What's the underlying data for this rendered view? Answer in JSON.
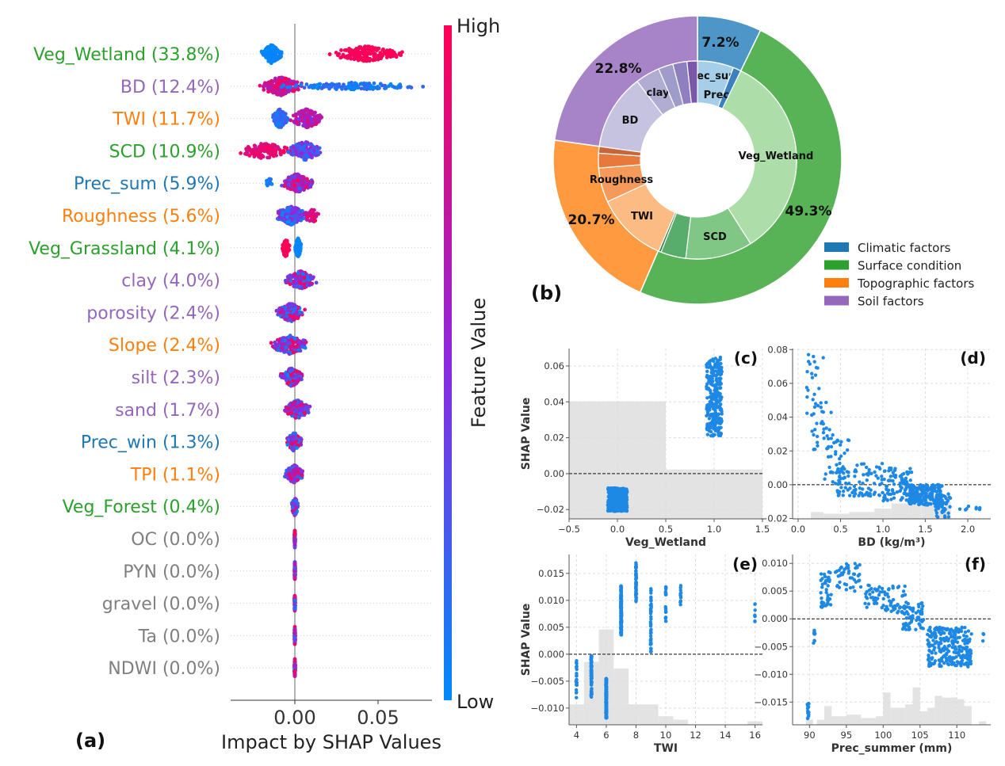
{
  "colors": {
    "climatic": "#1f77b4",
    "surface": "#2ca02c",
    "topographic": "#ff7f0e",
    "soil": "#9467bd",
    "zero": "#7f7f7f",
    "low": "#008afb",
    "high": "#ff0052",
    "point": "#1e88e5"
  },
  "chart_data": [
    {
      "panel": "(a)",
      "type": "scatter",
      "subtype": "beeswarm",
      "xlabel": "Impact by SHAP Values",
      "xticks": [
        0.0,
        0.05
      ],
      "xtick_labels": [
        "0.00",
        "0.05"
      ],
      "xlim": [
        -0.039,
        0.082
      ],
      "colorbar": {
        "label": "Feature Value",
        "high": "High",
        "low": "Low"
      },
      "features": [
        {
          "label": "Veg_Wetland (33.8%)",
          "group": "surface",
          "clusters": [
            {
              "range": [
                -0.02,
                -0.008
              ],
              "fv": [
                0,
                0.05
              ],
              "n": 160
            },
            {
              "range": [
                0.021,
                0.065
              ],
              "fv": [
                0.95,
                1
              ],
              "n": 180
            }
          ]
        },
        {
          "label": "BD (12.4%)",
          "group": "soil",
          "clusters": [
            {
              "range": [
                -0.021,
                0.004
              ],
              "fv": [
                0.6,
                1
              ],
              "n": 220
            },
            {
              "range": [
                -0.008,
                0.077
              ],
              "fv": [
                0,
                0.25
              ],
              "n": 120
            }
          ]
        },
        {
          "label": "TWI (11.7%)",
          "group": "topographic",
          "clusters": [
            {
              "range": [
                -0.014,
                -0.004
              ],
              "fv": [
                0.05,
                0.3
              ],
              "n": 140
            },
            {
              "range": [
                -0.003,
                0.017
              ],
              "fv": [
                0.4,
                0.9
              ],
              "n": 140
            }
          ]
        },
        {
          "label": "SCD (10.9%)",
          "group": "surface",
          "clusters": [
            {
              "range": [
                -0.034,
                -0.002
              ],
              "fv": [
                0.75,
                1
              ],
              "n": 140
            },
            {
              "range": [
                -0.004,
                0.016
              ],
              "fv": [
                0.1,
                0.6
              ],
              "n": 160
            }
          ]
        },
        {
          "label": "Prec_sum (5.9%)",
          "group": "climatic",
          "clusters": [
            {
              "range": [
                -0.018,
                -0.012
              ],
              "fv": [
                0,
                0.15
              ],
              "n": 15
            },
            {
              "range": [
                -0.008,
                0.011
              ],
              "fv": [
                0.2,
                1
              ],
              "n": 220
            }
          ]
        },
        {
          "label": "Roughness (5.6%)",
          "group": "topographic",
          "clusters": [
            {
              "range": [
                -0.012,
                0.008
              ],
              "fv": [
                0,
                0.6
              ],
              "n": 200
            },
            {
              "range": [
                0.005,
                0.015
              ],
              "fv": [
                0.7,
                1
              ],
              "n": 40
            }
          ]
        },
        {
          "label": "Veg_Grassland (4.1%)",
          "group": "surface",
          "clusters": [
            {
              "range": [
                -0.008,
                -0.003
              ],
              "fv": [
                0.95,
                1
              ],
              "n": 70
            },
            {
              "range": [
                0.0,
                0.004
              ],
              "fv": [
                0,
                0.05
              ],
              "n": 140
            }
          ]
        },
        {
          "label": "clay (4.0%)",
          "group": "soil",
          "clusters": [
            {
              "range": [
                -0.006,
                0.013
              ],
              "fv": [
                0,
                1
              ],
              "n": 200
            }
          ]
        },
        {
          "label": "porosity (2.4%)",
          "group": "soil",
          "clusters": [
            {
              "range": [
                -0.011,
                0.006
              ],
              "fv": [
                0,
                1
              ],
              "n": 180
            }
          ]
        },
        {
          "label": "Slope (2.4%)",
          "group": "topographic",
          "clusters": [
            {
              "range": [
                -0.015,
                0.009
              ],
              "fv": [
                0,
                1
              ],
              "n": 170
            }
          ]
        },
        {
          "label": "silt (2.3%)",
          "group": "soil",
          "clusters": [
            {
              "range": [
                -0.009,
                0.005
              ],
              "fv": [
                0,
                1
              ],
              "n": 170
            }
          ]
        },
        {
          "label": "sand (1.7%)",
          "group": "soil",
          "clusters": [
            {
              "range": [
                -0.006,
                0.009
              ],
              "fv": [
                0,
                1
              ],
              "n": 170
            }
          ]
        },
        {
          "label": "Prec_win (1.3%)",
          "group": "climatic",
          "clusters": [
            {
              "range": [
                -0.005,
                0.004
              ],
              "fv": [
                0,
                1
              ],
              "n": 170
            }
          ]
        },
        {
          "label": "TPI (1.1%)",
          "group": "topographic",
          "clusters": [
            {
              "range": [
                -0.006,
                0.005
              ],
              "fv": [
                0,
                1
              ],
              "n": 170
            }
          ]
        },
        {
          "label": "Veg_Forest (0.4%)",
          "group": "surface",
          "clusters": [
            {
              "range": [
                -0.002,
                0.002
              ],
              "fv": [
                0,
                1
              ],
              "n": 120
            }
          ]
        },
        {
          "label": "OC (0.0%)",
          "group": "zero",
          "clusters": [
            {
              "range": [
                -0.0003,
                0.0003
              ],
              "fv": [
                0,
                1
              ],
              "n": 80
            }
          ]
        },
        {
          "label": "PYN (0.0%)",
          "group": "zero",
          "clusters": [
            {
              "range": [
                -0.0003,
                0.0003
              ],
              "fv": [
                0,
                1
              ],
              "n": 80
            }
          ]
        },
        {
          "label": "gravel (0.0%)",
          "group": "zero",
          "clusters": [
            {
              "range": [
                -0.0003,
                0.0003
              ],
              "fv": [
                0,
                1
              ],
              "n": 80
            }
          ]
        },
        {
          "label": "Ta (0.0%)",
          "group": "zero",
          "clusters": [
            {
              "range": [
                -0.0003,
                0.0003
              ],
              "fv": [
                0,
                1
              ],
              "n": 80
            }
          ]
        },
        {
          "label": "NDWI (0.0%)",
          "group": "zero",
          "clusters": [
            {
              "range": [
                -0.0003,
                0.0003
              ],
              "fv": [
                0,
                1
              ],
              "n": 80
            }
          ]
        }
      ]
    },
    {
      "panel": "(b)",
      "type": "pie",
      "subtype": "nested-donut",
      "outer": [
        {
          "name": "Climatic factors",
          "group": "climatic",
          "value": 7.2,
          "label": "7.2%"
        },
        {
          "name": "Surface condition",
          "group": "surface",
          "value": 49.3,
          "label": "49.3%"
        },
        {
          "name": "Topographic factors",
          "group": "topographic",
          "value": 20.7,
          "label": "20.7%"
        },
        {
          "name": "Soil factors",
          "group": "soil",
          "value": 22.8,
          "label": "22.8%"
        }
      ],
      "inner": [
        {
          "name": "Prec_sum",
          "value": 5.9,
          "color": "#a6cee8",
          "show": true
        },
        {
          "name": "Prec_win",
          "value": 1.3,
          "color": "#3a7fbf",
          "show": true
        },
        {
          "name": "Veg_Wetland",
          "value": 33.8,
          "color": "#addda8",
          "show": true
        },
        {
          "name": "SCD",
          "value": 10.9,
          "color": "#80c785",
          "show": true
        },
        {
          "name": "Veg_Grassland",
          "value": 4.1,
          "color": "#58ad6c",
          "show": false
        },
        {
          "name": "Veg_Forest",
          "value": 0.4,
          "color": "#2f7e3f",
          "show": false
        },
        {
          "name": "TWI",
          "value": 11.7,
          "color": "#fdbb84",
          "show": true
        },
        {
          "name": "Roughness",
          "value": 5.6,
          "color": "#f59a5a",
          "show": true
        },
        {
          "name": "Slope",
          "value": 2.4,
          "color": "#e6793b",
          "show": false
        },
        {
          "name": "TPI",
          "value": 1.1,
          "color": "#c8663a",
          "show": false
        },
        {
          "name": "BD",
          "value": 12.4,
          "color": "#c5c3df",
          "show": true
        },
        {
          "name": "clay",
          "value": 4.0,
          "color": "#b0acd2",
          "show": true
        },
        {
          "name": "porosity",
          "value": 2.4,
          "color": "#9f9ccb",
          "show": false
        },
        {
          "name": "silt",
          "value": 2.3,
          "color": "#8d7fc0",
          "show": false
        },
        {
          "name": "sand",
          "value": 1.7,
          "color": "#7a57a8",
          "show": false
        }
      ],
      "legend": [
        "Climatic factors",
        "Surface condition",
        "Topographic factors",
        "Soil factors"
      ],
      "legend_placement": "bottom-right"
    },
    {
      "panel": "(c)",
      "type": "scatter",
      "xlabel": "Veg_Wetland",
      "ylabel": "SHAP Value",
      "xlim": [
        -0.5,
        1.5
      ],
      "ylim": [
        -0.0252,
        0.0697
      ],
      "xticks": [
        -0.5,
        0.0,
        0.5,
        1.0,
        1.5
      ],
      "xtick_labels": [
        "−0.5",
        "0.0",
        "0.5",
        "1.0",
        "1.5"
      ],
      "yticks": [
        -0.02,
        0,
        0.02,
        0.04,
        0.06
      ],
      "ytick_labels": [
        "−0.02",
        "0.00",
        "0.02",
        "0.04",
        "0.06"
      ],
      "grid": true,
      "clusters": [
        [
          -0.1,
          0.1,
          -0.021,
          -0.008,
          500
        ],
        [
          0.92,
          1.08,
          0.021,
          0.065,
          260
        ]
      ],
      "histogram": [
        [
          -0.5,
          0.5,
          0.69
        ],
        [
          0.5,
          1.5,
          0.29
        ]
      ]
    },
    {
      "panel": "(d)",
      "type": "scatter",
      "xlabel": "BD (kg/m³)",
      "ylabel": "",
      "xlim": [
        -0.065,
        2.27
      ],
      "ylim": [
        -0.0202,
        0.0806
      ],
      "xticks": [
        0,
        0.5,
        1,
        1.5,
        2
      ],
      "xtick_labels": [
        "0.0",
        "0.5",
        "1.0",
        "1.5",
        "2.0"
      ],
      "yticks": [
        -0.02,
        0,
        0.02,
        0.04,
        0.06,
        0.08
      ],
      "ytick_labels": [
        "−0.02",
        "0.00",
        "0.02",
        "0.04",
        "0.06",
        "0.08"
      ],
      "grid": true,
      "clusters": [
        [
          0.1,
          0.3,
          0.042,
          0.077,
          25
        ],
        [
          0.15,
          0.4,
          0.02,
          0.05,
          25
        ],
        [
          0.3,
          0.6,
          0.0,
          0.03,
          40
        ],
        [
          0.45,
          1.0,
          -0.007,
          0.013,
          90
        ],
        [
          1.0,
          1.35,
          -0.01,
          0.01,
          90
        ],
        [
          1.3,
          1.7,
          -0.012,
          0.0,
          220
        ],
        [
          1.6,
          1.8,
          -0.02,
          -0.005,
          40
        ],
        [
          1.8,
          2.15,
          -0.016,
          -0.012,
          8
        ]
      ],
      "histogram": [
        [
          0.15,
          0.3,
          0.04
        ],
        [
          0.3,
          0.6,
          0.03
        ],
        [
          0.6,
          0.9,
          0.04
        ],
        [
          0.9,
          1.1,
          0.06
        ],
        [
          1.1,
          1.3,
          0.09
        ],
        [
          1.3,
          1.45,
          0.18
        ],
        [
          1.45,
          1.6,
          0.17
        ],
        [
          1.6,
          1.8,
          0.1
        ]
      ]
    },
    {
      "panel": "(e)",
      "type": "scatter",
      "xlabel": "TWI",
      "ylabel": "SHAP Value",
      "xlim": [
        3.5,
        16.5
      ],
      "ylim": [
        -0.0131,
        0.0185
      ],
      "xticks": [
        4,
        6,
        8,
        10,
        12,
        14,
        16
      ],
      "xtick_labels": [
        "4",
        "6",
        "8",
        "10",
        "12",
        "14",
        "16"
      ],
      "yticks": [
        -0.01,
        -0.005,
        0,
        0.005,
        0.01,
        0.015
      ],
      "ytick_labels": [
        "−0.010",
        "−0.005",
        "0.000",
        "0.005",
        "0.010",
        "0.015"
      ],
      "grid": true,
      "clusters": [
        [
          4,
          4,
          -0.0082,
          -0.0012,
          25
        ],
        [
          5,
          5,
          -0.0082,
          -0.0003,
          80
        ],
        [
          6,
          6,
          -0.012,
          -0.0045,
          200
        ],
        [
          7,
          7,
          0.0035,
          0.0127,
          200
        ],
        [
          8,
          8,
          0.0095,
          0.017,
          60
        ],
        [
          9,
          9,
          0.0004,
          0.0128,
          45
        ],
        [
          10,
          10,
          0.0058,
          0.013,
          22
        ],
        [
          11,
          11,
          0.0085,
          0.0142,
          12
        ],
        [
          16,
          16,
          0.0052,
          0.0098,
          8
        ]
      ],
      "histogram": [
        [
          3.5,
          4.5,
          0.12
        ],
        [
          4.5,
          5.5,
          0.37
        ],
        [
          5.5,
          6.5,
          0.56
        ],
        [
          6.5,
          7.5,
          0.33
        ],
        [
          7.5,
          9.5,
          0.12
        ],
        [
          9.5,
          10.5,
          0.05
        ],
        [
          10.5,
          11.5,
          0.03
        ],
        [
          15.5,
          16.5,
          0.02
        ]
      ]
    },
    {
      "panel": "(f)",
      "type": "scatter",
      "xlabel": "Prec_summer (mm)",
      "ylabel": "",
      "xlim": [
        87.7,
        114.6
      ],
      "ylim": [
        -0.0191,
        0.0116
      ],
      "xticks": [
        90,
        95,
        100,
        105,
        110
      ],
      "xtick_labels": [
        "90",
        "95",
        "100",
        "105",
        "110"
      ],
      "yticks": [
        -0.015,
        -0.01,
        -0.005,
        0,
        0.005,
        0.01
      ],
      "ytick_labels": [
        "−0.015",
        "−0.010",
        "−0.005",
        "0.000",
        "0.005",
        "0.010"
      ],
      "grid": true,
      "clusters": [
        [
          89.7,
          89.9,
          -0.018,
          -0.015,
          14
        ],
        [
          90.5,
          90.8,
          -0.0045,
          -0.001,
          10
        ],
        [
          91.5,
          93,
          0.002,
          0.009,
          45
        ],
        [
          93.5,
          97,
          0.005,
          0.01,
          45
        ],
        [
          97.5,
          100,
          0.002,
          0.0065,
          30
        ],
        [
          100,
          103,
          0.001,
          0.006,
          40
        ],
        [
          102.5,
          105.5,
          -0.002,
          0.003,
          70
        ],
        [
          106,
          112,
          -0.0087,
          -0.0015,
          240
        ],
        [
          113.5,
          113.7,
          -0.0043,
          -0.002,
          3
        ]
      ],
      "histogram": [
        [
          89.5,
          90.5,
          0.03
        ],
        [
          91,
          92,
          0.03
        ],
        [
          92,
          93,
          0.11
        ],
        [
          93,
          95,
          0.05
        ],
        [
          95,
          97,
          0.06
        ],
        [
          97,
          99,
          0.04
        ],
        [
          99,
          100,
          0.05
        ],
        [
          100,
          101,
          0.19
        ],
        [
          101,
          103,
          0.1
        ],
        [
          103,
          104,
          0.12
        ],
        [
          104,
          105,
          0.22
        ],
        [
          105,
          106,
          0.08
        ],
        [
          106,
          107,
          0.1
        ],
        [
          107,
          108,
          0.17
        ],
        [
          108,
          110,
          0.16
        ],
        [
          110,
          111,
          0.15
        ],
        [
          111,
          112,
          0.11
        ],
        [
          113,
          114,
          0.02
        ]
      ]
    }
  ],
  "panel_labels": [
    "(a)",
    "(b)",
    "(c)",
    "(d)",
    "(e)",
    "(f)"
  ]
}
